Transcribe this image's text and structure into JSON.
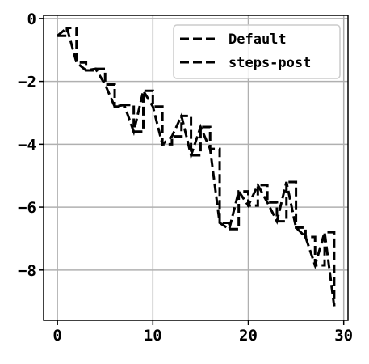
{
  "chart_data": {
    "type": "line",
    "title": "",
    "xlabel": "",
    "ylabel": "",
    "xlim": [
      -1.45,
      30.45
    ],
    "ylim": [
      -9.6,
      0.1
    ],
    "grid": true,
    "legend_position": "top-right",
    "x_ticks": [
      0,
      10,
      20,
      30
    ],
    "x_tick_labels": [
      "0",
      "10",
      "20",
      "30"
    ],
    "y_ticks": [
      0,
      -2,
      -4,
      -6,
      -8
    ],
    "y_tick_labels": [
      "0",
      "−2",
      "−4",
      "−6",
      "−8"
    ],
    "x": [
      0,
      1,
      2,
      3,
      4,
      5,
      6,
      7,
      8,
      9,
      10,
      11,
      12,
      13,
      14,
      15,
      16,
      17,
      18,
      19,
      20,
      21,
      22,
      23,
      24,
      25,
      26,
      27,
      28,
      29
    ],
    "series": [
      {
        "name": "Default",
        "drawstyle": "default",
        "color": "#000000",
        "line_style": "dashed",
        "values": [
          -0.55,
          -0.3,
          -1.4,
          -1.65,
          -1.6,
          -2.1,
          -2.8,
          -2.75,
          -3.6,
          -2.3,
          -2.8,
          -4.0,
          -3.75,
          -3.1,
          -4.35,
          -3.45,
          -4.15,
          -6.5,
          -6.7,
          -5.5,
          -5.95,
          -5.3,
          -5.85,
          -6.45,
          -5.2,
          -6.65,
          -6.95,
          -7.85,
          -6.8,
          -9.15
        ]
      },
      {
        "name": "steps-post",
        "drawstyle": "steps-post",
        "color": "#000000",
        "line_style": "dashed",
        "values": [
          -0.55,
          -0.3,
          -1.4,
          -1.65,
          -1.6,
          -2.1,
          -2.8,
          -2.75,
          -3.6,
          -2.3,
          -2.8,
          -4.0,
          -3.75,
          -3.1,
          -4.35,
          -3.45,
          -4.15,
          -6.5,
          -6.7,
          -5.5,
          -5.95,
          -5.3,
          -5.85,
          -6.45,
          -5.2,
          -6.65,
          -6.95,
          -7.85,
          -6.8,
          -9.15
        ]
      }
    ]
  }
}
